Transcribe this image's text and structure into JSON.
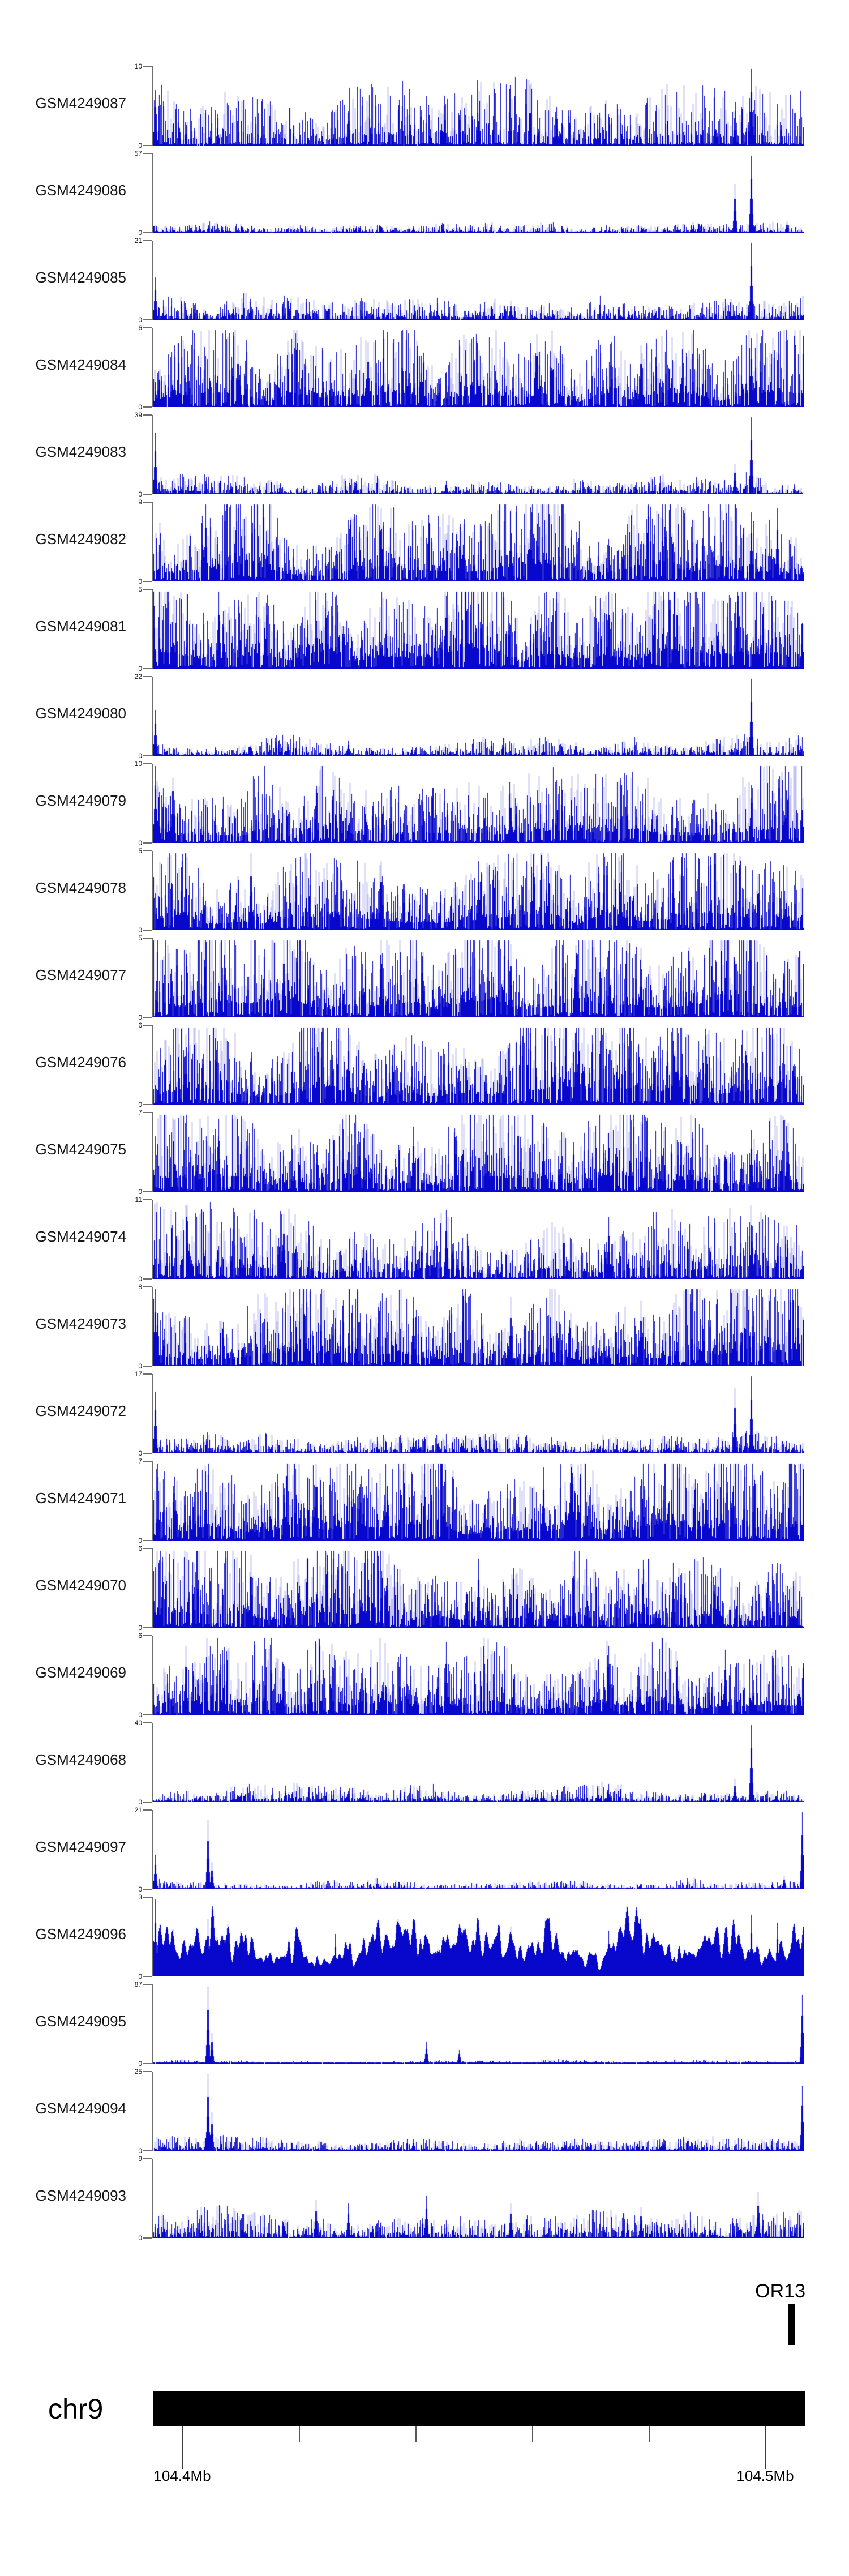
{
  "page": {
    "background": "#ffffff"
  },
  "chart_data": {
    "type": "area",
    "description": "Genome browser style figure: 25 GEO sample signal tracks (blue coverage profiles) over region chr9 104.4-104.5 Mb, with OR13 gene mark and chr9 ideogram bar",
    "chromosome_label": "chr9",
    "gene_label": "OR13",
    "signal_color": "#0808cc",
    "y_min_label": "0",
    "x_axis": {
      "tick_labels": [
        "104.4Mb",
        "104.5Mb"
      ],
      "labeled_ticks_mb": [
        104.4,
        104.5
      ],
      "all_ticks_mb": [
        104.4,
        104.42,
        104.44,
        104.46,
        104.48,
        104.5
      ],
      "approx_range_mb": [
        104.395,
        104.507
      ]
    },
    "tracks": [
      {
        "label": "GSM4249087",
        "ymax": 10,
        "profile": {
          "base": 0.3,
          "density": 0.65,
          "smooth": false,
          "peaks": [
            [
              0.003,
              0.72
            ],
            [
              0.92,
              1.0
            ],
            [
              0.895,
              0.45
            ],
            [
              0.62,
              0.5
            ],
            [
              0.3,
              0.45
            ]
          ]
        }
      },
      {
        "label": "GSM4249086",
        "ymax": 57,
        "profile": {
          "base": 0.05,
          "density": 0.7,
          "smooth": false,
          "peaks": [
            [
              0.92,
              1.0
            ],
            [
              0.895,
              0.63
            ],
            [
              0.975,
              0.15
            ],
            [
              0.4,
              0.08
            ]
          ]
        }
      },
      {
        "label": "GSM4249085",
        "ymax": 21,
        "profile": {
          "base": 0.12,
          "density": 0.7,
          "smooth": false,
          "peaks": [
            [
              0.003,
              0.55
            ],
            [
              0.92,
              1.0
            ],
            [
              0.55,
              0.25
            ],
            [
              0.18,
              0.2
            ]
          ]
        }
      },
      {
        "label": "GSM4249084",
        "ymax": 6,
        "profile": {
          "base": 0.42,
          "density": 0.8,
          "smooth": false,
          "peaks": [
            [
              0.59,
              0.95
            ],
            [
              0.92,
              0.9
            ],
            [
              0.33,
              0.85
            ],
            [
              0.75,
              0.8
            ],
            [
              0.13,
              0.8
            ]
          ]
        }
      },
      {
        "label": "GSM4249083",
        "ymax": 39,
        "profile": {
          "base": 0.1,
          "density": 0.7,
          "smooth": false,
          "peaks": [
            [
              0.003,
              0.8
            ],
            [
              0.92,
              1.0
            ],
            [
              0.895,
              0.4
            ],
            [
              0.45,
              0.18
            ]
          ]
        }
      },
      {
        "label": "GSM4249082",
        "ymax": 9,
        "profile": {
          "base": 0.48,
          "density": 0.8,
          "smooth": false,
          "peaks": [
            [
              0.08,
              1.0
            ],
            [
              0.35,
              0.95
            ],
            [
              0.92,
              0.9
            ],
            [
              0.96,
              0.95
            ],
            [
              0.55,
              0.9
            ]
          ]
        }
      },
      {
        "label": "GSM4249081",
        "ymax": 5,
        "profile": {
          "base": 0.55,
          "density": 0.85,
          "smooth": false,
          "peaks": [
            [
              0.1,
              1.0
            ],
            [
              0.45,
              0.95
            ],
            [
              0.7,
              1.0
            ],
            [
              0.9,
              0.95
            ],
            [
              0.25,
              0.9
            ]
          ]
        }
      },
      {
        "label": "GSM4249080",
        "ymax": 22,
        "profile": {
          "base": 0.1,
          "density": 0.7,
          "smooth": false,
          "peaks": [
            [
              0.003,
              0.6
            ],
            [
              0.92,
              1.0
            ],
            [
              0.3,
              0.2
            ],
            [
              0.65,
              0.18
            ]
          ]
        }
      },
      {
        "label": "GSM4249079",
        "ymax": 10,
        "profile": {
          "base": 0.38,
          "density": 0.75,
          "smooth": false,
          "peaks": [
            [
              0.003,
              1.0
            ],
            [
              0.03,
              0.85
            ],
            [
              0.25,
              0.7
            ],
            [
              0.92,
              0.75
            ],
            [
              0.55,
              0.65
            ]
          ]
        }
      },
      {
        "label": "GSM4249078",
        "ymax": 5,
        "profile": {
          "base": 0.5,
          "density": 0.8,
          "smooth": false,
          "peaks": [
            [
              0.15,
              1.0
            ],
            [
              0.5,
              0.9
            ],
            [
              0.8,
              0.95
            ],
            [
              0.35,
              0.9
            ]
          ]
        }
      },
      {
        "label": "GSM4249077",
        "ymax": 5,
        "profile": {
          "base": 0.5,
          "density": 0.8,
          "smooth": false,
          "peaks": [
            [
              0.2,
              1.0
            ],
            [
              0.35,
              1.0
            ],
            [
              0.55,
              0.95
            ],
            [
              0.75,
              0.9
            ]
          ]
        }
      },
      {
        "label": "GSM4249076",
        "ymax": 6,
        "profile": {
          "base": 0.5,
          "density": 0.8,
          "smooth": false,
          "peaks": [
            [
              0.05,
              0.9
            ],
            [
              0.3,
              1.0
            ],
            [
              0.65,
              0.95
            ],
            [
              0.85,
              0.9
            ]
          ]
        }
      },
      {
        "label": "GSM4249075",
        "ymax": 7,
        "profile": {
          "base": 0.45,
          "density": 0.78,
          "smooth": false,
          "peaks": [
            [
              0.1,
              0.95
            ],
            [
              0.6,
              0.9
            ],
            [
              0.92,
              0.8
            ],
            [
              0.4,
              0.85
            ]
          ]
        }
      },
      {
        "label": "GSM4249074",
        "ymax": 11,
        "profile": {
          "base": 0.36,
          "density": 0.75,
          "smooth": false,
          "peaks": [
            [
              0.2,
              0.85
            ],
            [
              0.45,
              0.9
            ],
            [
              0.7,
              0.8
            ],
            [
              0.92,
              0.7
            ]
          ]
        }
      },
      {
        "label": "GSM4249073",
        "ymax": 8,
        "profile": {
          "base": 0.45,
          "density": 0.8,
          "smooth": false,
          "peaks": [
            [
              0.003,
              1.0
            ],
            [
              0.4,
              0.9
            ],
            [
              0.75,
              0.85
            ],
            [
              0.55,
              0.9
            ]
          ]
        }
      },
      {
        "label": "GSM4249072",
        "ymax": 17,
        "profile": {
          "base": 0.1,
          "density": 0.72,
          "smooth": false,
          "peaks": [
            [
              0.003,
              0.8
            ],
            [
              0.92,
              1.0
            ],
            [
              0.895,
              0.85
            ],
            [
              0.4,
              0.2
            ]
          ]
        }
      },
      {
        "label": "GSM4249071",
        "ymax": 7,
        "profile": {
          "base": 0.5,
          "density": 0.85,
          "smooth": false,
          "peaks": [
            [
              0.25,
              1.0
            ],
            [
              0.6,
              0.95
            ],
            [
              0.85,
              0.9
            ],
            [
              0.08,
              0.9
            ]
          ]
        }
      },
      {
        "label": "GSM4249070",
        "ymax": 6,
        "profile": {
          "base": 0.46,
          "density": 0.8,
          "smooth": false,
          "peaks": [
            [
              0.15,
              0.95
            ],
            [
              0.5,
              0.9
            ],
            [
              0.8,
              0.85
            ],
            [
              0.33,
              0.9
            ]
          ]
        }
      },
      {
        "label": "GSM4249069",
        "ymax": 6,
        "profile": {
          "base": 0.46,
          "density": 0.8,
          "smooth": false,
          "peaks": [
            [
              0.05,
              0.9
            ],
            [
              0.45,
              0.95
            ],
            [
              0.7,
              0.9
            ],
            [
              0.88,
              0.85
            ]
          ]
        }
      },
      {
        "label": "GSM4249068",
        "ymax": 40,
        "profile": {
          "base": 0.09,
          "density": 0.75,
          "smooth": false,
          "peaks": [
            [
              0.92,
              1.0
            ],
            [
              0.895,
              0.3
            ],
            [
              0.3,
              0.15
            ],
            [
              0.6,
              0.12
            ]
          ]
        }
      },
      {
        "label": "GSM4249097",
        "ymax": 21,
        "profile": {
          "base": 0.05,
          "density": 0.7,
          "smooth": false,
          "peaks": [
            [
              0.003,
              0.45
            ],
            [
              0.084,
              0.9
            ],
            [
              0.09,
              0.35
            ],
            [
              0.998,
              1.0
            ],
            [
              0.97,
              0.18
            ]
          ]
        }
      },
      {
        "label": "GSM4249096",
        "ymax": 3,
        "profile": {
          "base": 0.4,
          "density": 0.85,
          "smooth": true,
          "peaks": [
            [
              0.003,
              1.0
            ],
            [
              0.03,
              0.62
            ],
            [
              0.084,
              0.75
            ],
            [
              0.28,
              0.55
            ],
            [
              0.55,
              0.65
            ],
            [
              0.92,
              0.8
            ],
            [
              0.96,
              0.7
            ],
            [
              0.7,
              0.6
            ]
          ]
        }
      },
      {
        "label": "GSM4249095",
        "ymax": 87,
        "profile": {
          "base": 0.02,
          "density": 0.75,
          "smooth": false,
          "peaks": [
            [
              0.084,
              1.0
            ],
            [
              0.09,
              0.4
            ],
            [
              0.42,
              0.28
            ],
            [
              0.47,
              0.18
            ],
            [
              0.998,
              0.9
            ]
          ]
        }
      },
      {
        "label": "GSM4249094",
        "ymax": 25,
        "profile": {
          "base": 0.07,
          "density": 0.72,
          "smooth": false,
          "peaks": [
            [
              0.084,
              1.0
            ],
            [
              0.09,
              0.5
            ],
            [
              0.998,
              0.85
            ],
            [
              0.4,
              0.15
            ]
          ]
        }
      },
      {
        "label": "GSM4249093",
        "ymax": 9,
        "profile": {
          "base": 0.16,
          "density": 0.7,
          "smooth": false,
          "peaks": [
            [
              0.25,
              0.5
            ],
            [
              0.42,
              0.55
            ],
            [
              0.55,
              0.45
            ],
            [
              0.75,
              0.4
            ],
            [
              0.93,
              0.6
            ],
            [
              0.3,
              0.45
            ]
          ]
        }
      }
    ]
  }
}
